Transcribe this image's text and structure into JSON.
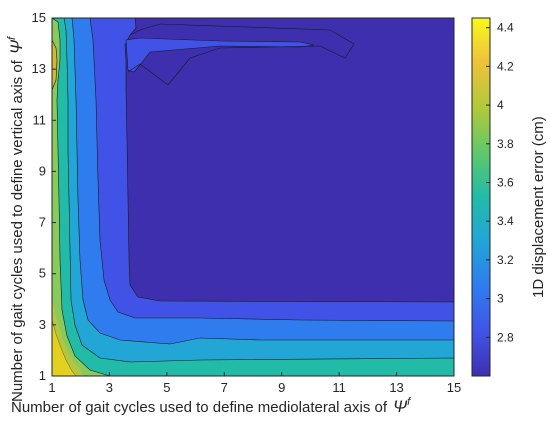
{
  "chart_data": {
    "type": "heatmap",
    "title": "",
    "xlabel": "Number of gait cycles used to define mediolateral axis of",
    "ylabel": "Number of gait cycles used to define vertical axis of",
    "axis_symbol": "Ψ",
    "axis_symbol_superscript": "f",
    "x_ticks": [
      1,
      3,
      5,
      7,
      9,
      11,
      13,
      15
    ],
    "y_ticks": [
      1,
      3,
      5,
      7,
      9,
      11,
      13,
      15
    ],
    "xlim": [
      1,
      15
    ],
    "ylim": [
      1,
      15
    ],
    "colorbar": {
      "label": "1D displacement error (cm)",
      "ticks": [
        2.8,
        3,
        3.2,
        3.4,
        3.6,
        3.8,
        4,
        4.2,
        4.4
      ],
      "tick_labels": [
        "2.8",
        "3",
        "3.2",
        "3.4",
        "3.6",
        "3.8",
        "4",
        "4.2",
        "4.4"
      ],
      "range": [
        2.6,
        4.45
      ],
      "colormap": "parula"
    },
    "contour_levels": [
      {
        "level_min": 2.6,
        "level_max": 2.8,
        "color": "#3d2fae",
        "region": "interior x 4–15, y 4–15 (lowest error)"
      },
      {
        "level_min": 2.8,
        "level_max": 3.0,
        "color": "#4153e6",
        "region": "band around x≈3–4 and y≈3.8–4, plus narrow tongue at y≈14"
      },
      {
        "level_min": 3.0,
        "level_max": 3.2,
        "color": "#2f7cee",
        "region": "band x≈2–3 and y≈2.3–3.5"
      },
      {
        "level_min": 3.2,
        "level_max": 3.4,
        "color": "#21a6d6",
        "region": "band x≈1.5–2 and y≈1.6–2.3"
      },
      {
        "level_min": 3.4,
        "level_max": 3.7,
        "color": "#22bba8",
        "region": "x≈1.2–1.6 and y≈1.2–1.6"
      },
      {
        "level_min": 3.7,
        "level_max": 4.0,
        "color": "#88cb5b",
        "region": "corner near x=1–1.7, y=1–3"
      },
      {
        "level_min": 4.0,
        "level_max": 4.4,
        "color": "#f2e018",
        "region": "corner x=1, y=1–2 (highest error)"
      }
    ]
  }
}
